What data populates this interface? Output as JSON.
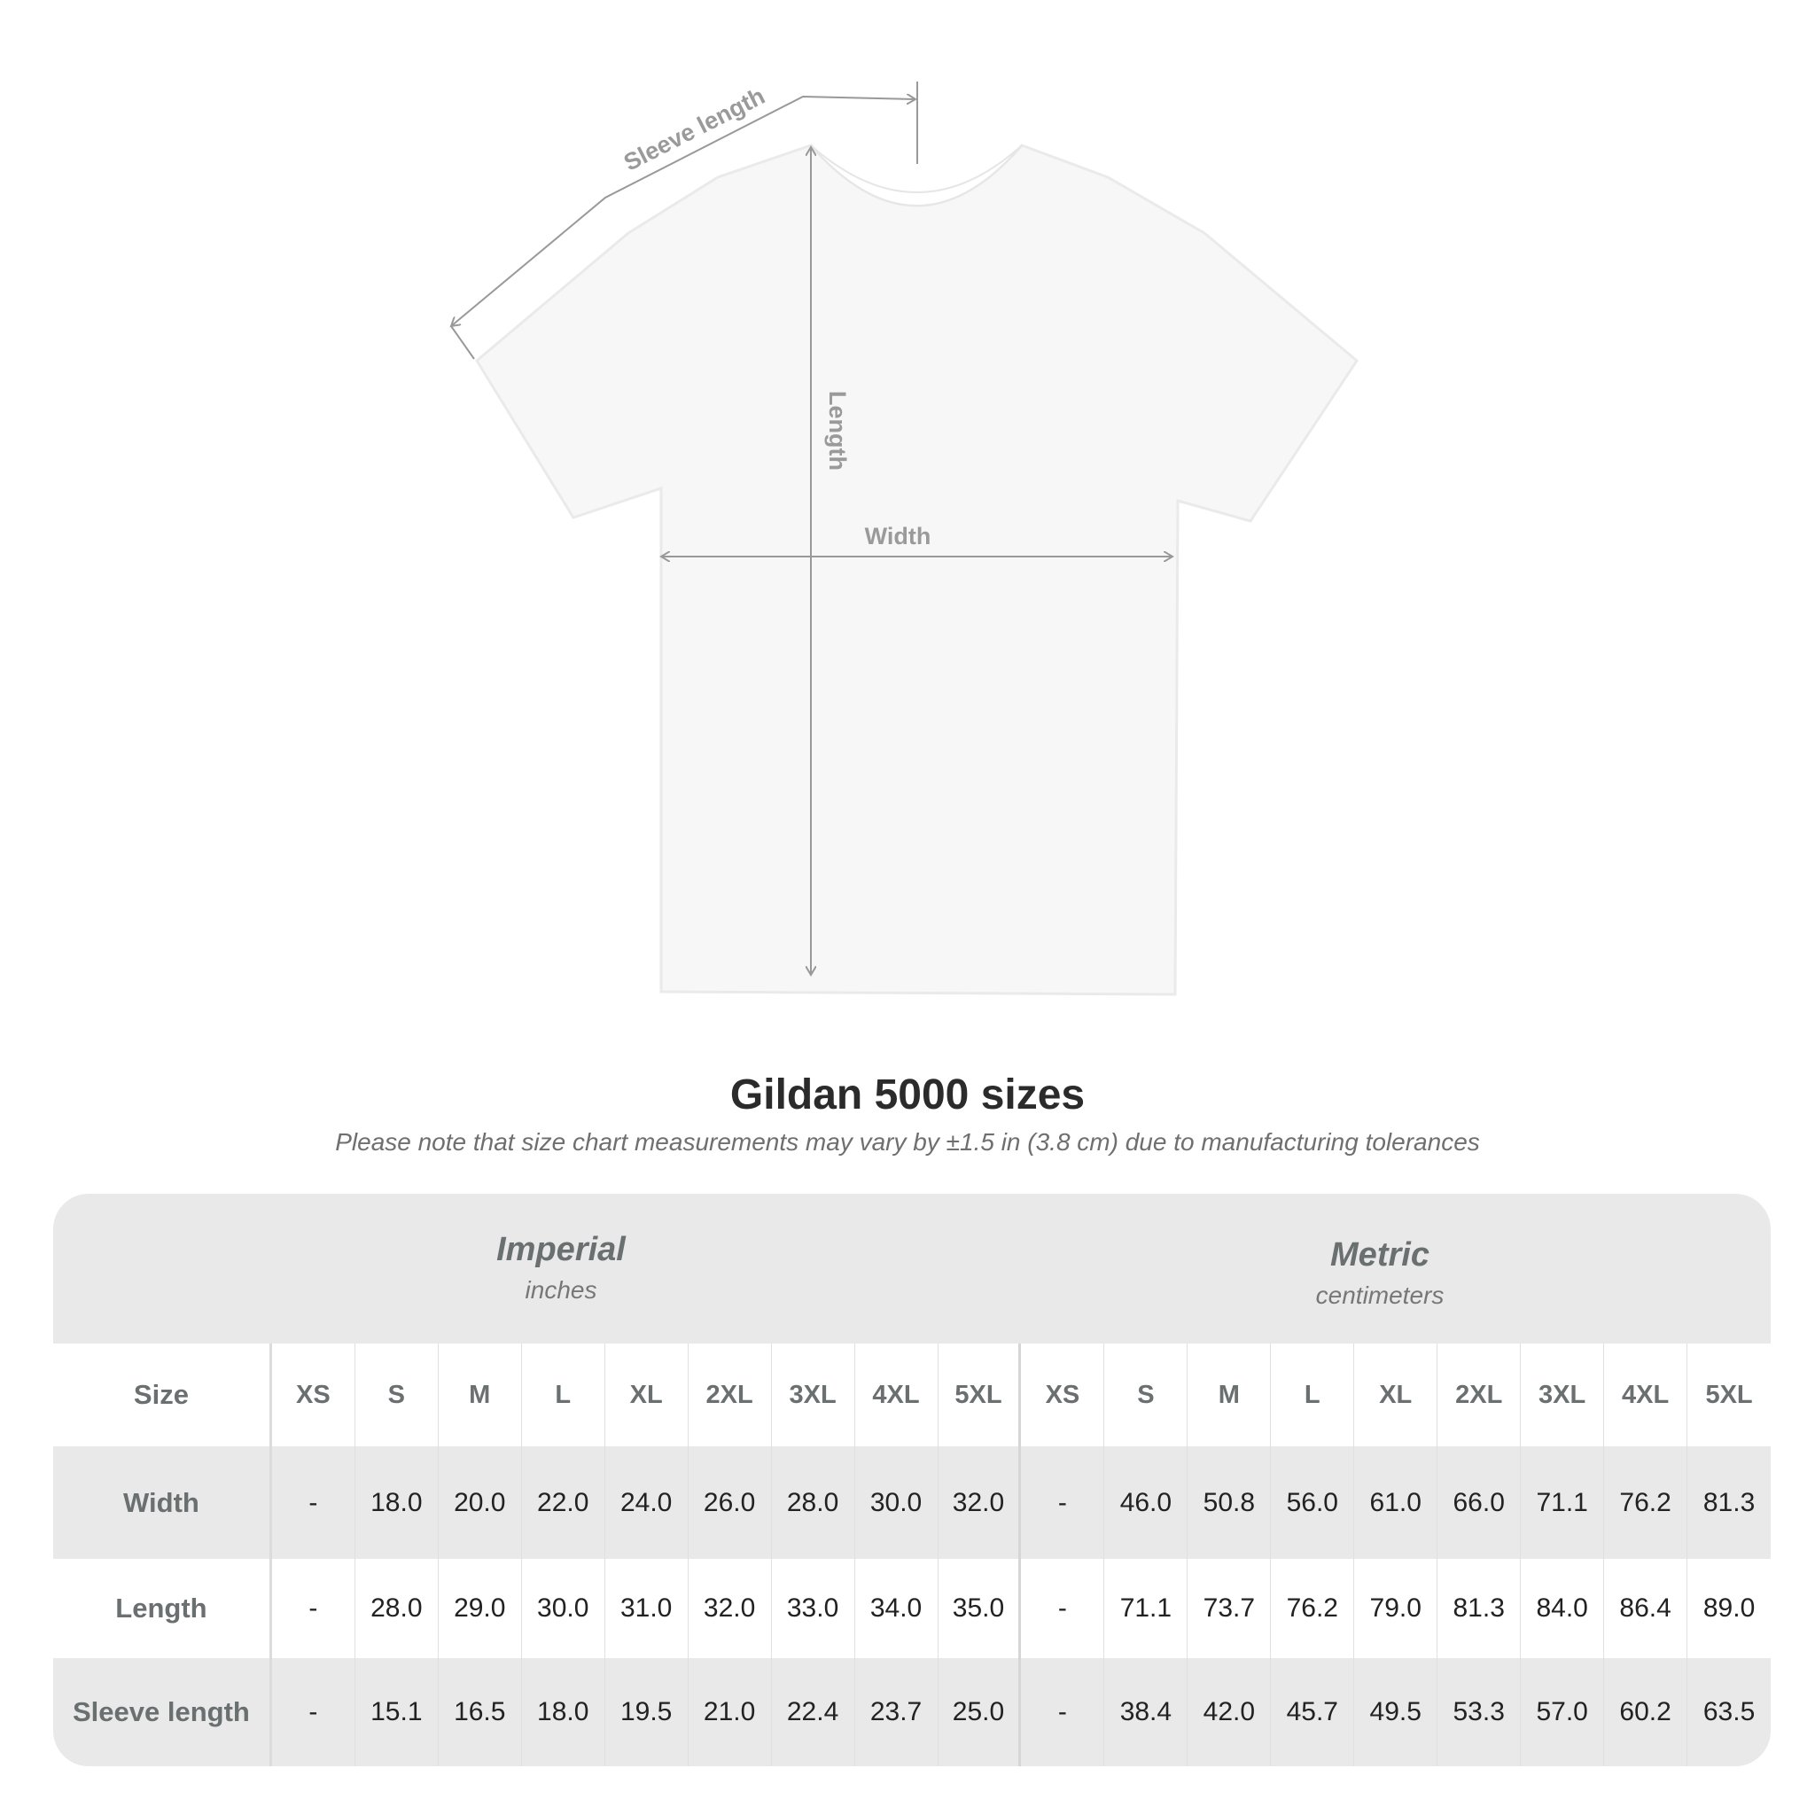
{
  "diagram": {
    "labels": {
      "sleeve": "Sleeve length",
      "length": "Length",
      "width": "Width"
    }
  },
  "title": "Gildan 5000 sizes",
  "note": "Please note that size chart measurements may vary by ±1.5 in (3.8 cm) due to manufacturing tolerances",
  "table": {
    "imperial": {
      "title": "Imperial",
      "unit": "inches"
    },
    "metric": {
      "title": "Metric",
      "unit": "centimeters"
    },
    "size_label": "Size",
    "sizes": [
      "XS",
      "S",
      "M",
      "L",
      "XL",
      "2XL",
      "3XL",
      "4XL",
      "5XL"
    ],
    "rows": [
      {
        "label": "Width",
        "imperial": [
          "-",
          "18.0",
          "20.0",
          "22.0",
          "24.0",
          "26.0",
          "28.0",
          "30.0",
          "32.0"
        ],
        "metric": [
          "-",
          "46.0",
          "50.8",
          "56.0",
          "61.0",
          "66.0",
          "71.1",
          "76.2",
          "81.3"
        ]
      },
      {
        "label": "Length",
        "imperial": [
          "-",
          "28.0",
          "29.0",
          "30.0",
          "31.0",
          "32.0",
          "33.0",
          "34.0",
          "35.0"
        ],
        "metric": [
          "-",
          "71.1",
          "73.7",
          "76.2",
          "79.0",
          "81.3",
          "84.0",
          "86.4",
          "89.0"
        ]
      },
      {
        "label": "Sleeve length",
        "imperial": [
          "-",
          "15.1",
          "16.5",
          "18.0",
          "19.5",
          "21.0",
          "22.4",
          "23.7",
          "25.0"
        ],
        "metric": [
          "-",
          "38.4",
          "42.0",
          "45.7",
          "49.5",
          "53.3",
          "57.0",
          "60.2",
          "63.5"
        ]
      }
    ]
  },
  "colors": {
    "band": "#e9e9e9",
    "header_text": "#6a6f70",
    "measure_line": "#9a9a9a"
  }
}
